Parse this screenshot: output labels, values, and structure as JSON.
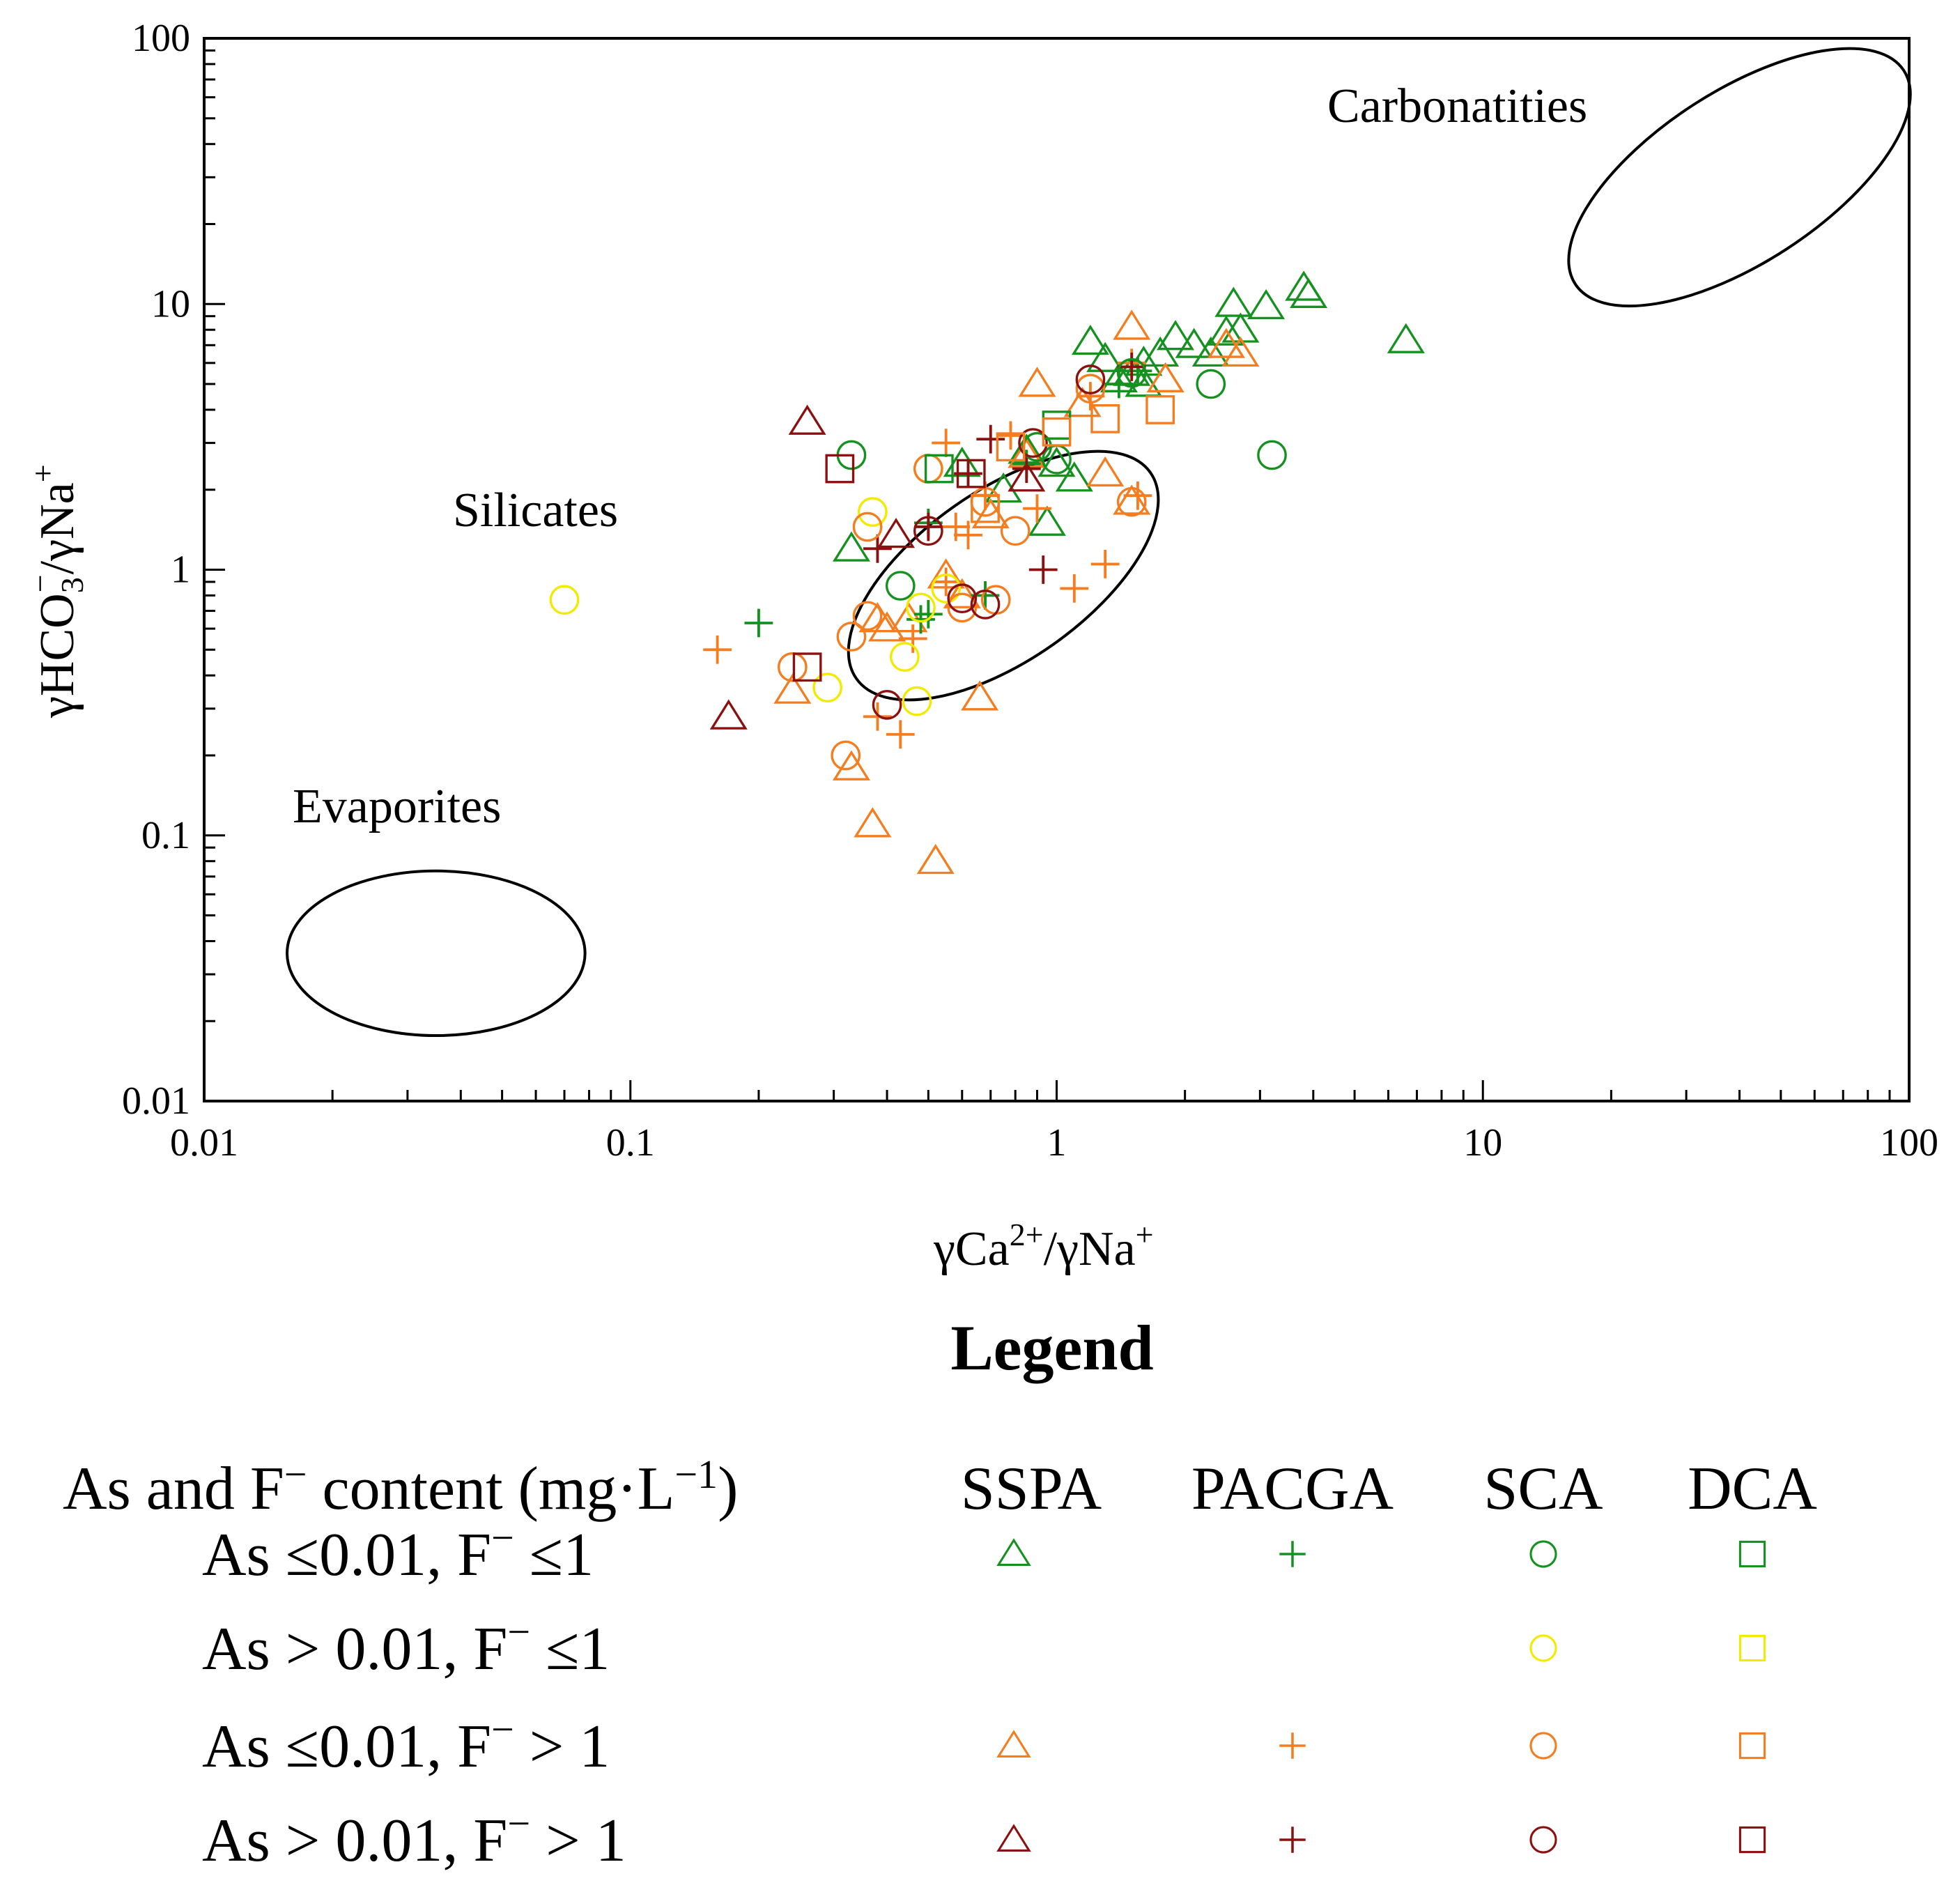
{
  "chart_data": {
    "type": "scatter",
    "title": "",
    "xscale": "log",
    "yscale": "log",
    "xlim": [
      0.01,
      100
    ],
    "ylim": [
      0.01,
      100
    ],
    "xticks": [
      {
        "value": 0.01,
        "label": "0.01"
      },
      {
        "value": 0.1,
        "label": "0.1"
      },
      {
        "value": 1,
        "label": "1"
      },
      {
        "value": 10,
        "label": "10"
      },
      {
        "value": 100,
        "label": "100"
      }
    ],
    "yticks": [
      {
        "value": 0.01,
        "label": "0.01"
      },
      {
        "value": 0.1,
        "label": "0.1"
      },
      {
        "value": 1,
        "label": "1"
      },
      {
        "value": 10,
        "label": "10"
      },
      {
        "value": 100,
        "label": "100"
      }
    ],
    "xlabel": {
      "prefix": "γCa",
      "sup1": "2+",
      "mid": "/γNa",
      "sup2": "+"
    },
    "ylabel": {
      "prefix": "γHCO",
      "sub": "3",
      "sup1": "−",
      "mid": "/γNa",
      "sup2": "+"
    },
    "regions": [
      {
        "name": "Carbonatities",
        "label": "Carbonatities",
        "center": [
          40,
          30
        ],
        "xspan": [
          20,
          120
        ],
        "yspan": [
          13,
          90
        ],
        "angle": -33,
        "label_at": [
          25,
          60
        ]
      },
      {
        "name": "Silicates",
        "label": "Silicates",
        "center": [
          0.75,
          0.95
        ],
        "xspan": [
          0.33,
          1.6
        ],
        "yspan": [
          0.28,
          1.9
        ],
        "angle": -35,
        "label_at": [
          0.11,
          1.65
        ]
      },
      {
        "name": "Evaporites",
        "label": "Evaporites",
        "center": [
          0.035,
          0.036
        ],
        "xspan": [
          0.015,
          0.075
        ],
        "yspan": [
          0.018,
          0.075
        ],
        "angle": 0,
        "label_at": [
          0.023,
          0.125
        ]
      }
    ],
    "colors": {
      "green": "#14911f",
      "yellow": "#f2ea00",
      "orange": "#f47d20",
      "darkred": "#8b1010"
    },
    "series": [
      {
        "name": "SSPA, As ≤0.01, F− ≤1",
        "region": "SSPA",
        "group": "As ≤0.01, F− ≤1",
        "marker": "triangle",
        "color": "#14911f",
        "points": [
          [
            1.2,
            7.2
          ],
          [
            1.3,
            6.2
          ],
          [
            1.4,
            5.2
          ],
          [
            1.5,
            5.5
          ],
          [
            1.6,
            5.0
          ],
          [
            1.75,
            6.5
          ],
          [
            1.9,
            7.5
          ],
          [
            2.1,
            7.0
          ],
          [
            2.3,
            6.5
          ],
          [
            2.5,
            7.8
          ],
          [
            2.6,
            10.0
          ],
          [
            2.7,
            8.0
          ],
          [
            3.1,
            9.8
          ],
          [
            3.8,
            11.5
          ],
          [
            3.9,
            10.8
          ],
          [
            6.6,
            7.3
          ],
          [
            0.33,
            1.2
          ],
          [
            0.95,
            1.5
          ],
          [
            1.0,
            2.5
          ],
          [
            0.6,
            2.5
          ],
          [
            0.75,
            2.0
          ],
          [
            0.85,
            2.8
          ],
          [
            1.1,
            2.2
          ],
          [
            1.6,
            6.0
          ]
        ]
      },
      {
        "name": "SSPA, As ≤0.01, F− >1",
        "region": "SSPA",
        "group": "As ≤0.01, F− > 1",
        "marker": "triangle",
        "color": "#f47d20",
        "points": [
          [
            0.52,
            0.08
          ],
          [
            0.37,
            0.11
          ],
          [
            0.33,
            0.18
          ],
          [
            0.24,
            0.35
          ],
          [
            0.66,
            0.33
          ],
          [
            0.45,
            0.65
          ],
          [
            0.55,
            0.95
          ],
          [
            0.9,
            5.0
          ],
          [
            1.15,
            4.2
          ],
          [
            1.5,
            8.2
          ],
          [
            1.3,
            2.3
          ],
          [
            1.5,
            1.8
          ],
          [
            2.5,
            7.0
          ],
          [
            2.7,
            6.5
          ],
          [
            1.8,
            5.2
          ],
          [
            0.4,
            0.6
          ],
          [
            0.38,
            0.65
          ],
          [
            0.6,
            0.8
          ],
          [
            0.7,
            1.6
          ],
          [
            0.85,
            2.7
          ]
        ]
      },
      {
        "name": "SSPA, As >0.01, F− >1",
        "region": "SSPA",
        "group": "As > 0.01, F− > 1",
        "marker": "triangle",
        "color": "#8b1010",
        "points": [
          [
            0.26,
            3.6
          ],
          [
            0.17,
            0.28
          ],
          [
            0.42,
            1.35
          ],
          [
            0.85,
            2.2
          ]
        ]
      },
      {
        "name": "PACGA, As ≤0.01, F− ≤1",
        "region": "PACGA",
        "group": "As ≤0.01, F− ≤1",
        "marker": "plus",
        "color": "#14911f",
        "points": [
          [
            0.2,
            0.63
          ],
          [
            0.48,
            0.65
          ],
          [
            0.5,
            0.68
          ],
          [
            0.68,
            0.8
          ],
          [
            0.5,
            1.5
          ],
          [
            1.4,
            5.0
          ],
          [
            1.55,
            5.6
          ],
          [
            0.85,
            2.5
          ]
        ]
      },
      {
        "name": "PACGA, As ≤0.01, F− >1",
        "region": "PACGA",
        "group": "As ≤0.01, F− > 1",
        "marker": "plus",
        "color": "#f47d20",
        "points": [
          [
            0.16,
            0.5
          ],
          [
            0.43,
            0.24
          ],
          [
            0.38,
            0.28
          ],
          [
            0.46,
            0.55
          ],
          [
            0.55,
            0.9
          ],
          [
            0.58,
            1.45
          ],
          [
            0.62,
            1.35
          ],
          [
            0.55,
            3.0
          ],
          [
            0.78,
            3.2
          ],
          [
            0.9,
            1.7
          ],
          [
            1.1,
            0.85
          ],
          [
            1.3,
            1.05
          ],
          [
            1.2,
            4.5
          ],
          [
            0.68,
            1.9
          ],
          [
            1.5,
            6.0
          ],
          [
            1.55,
            1.9
          ]
        ]
      },
      {
        "name": "PACGA, As >0.01, F− >1",
        "region": "PACGA",
        "group": "As > 0.01, F− > 1",
        "marker": "plus",
        "color": "#8b1010",
        "points": [
          [
            0.38,
            1.2
          ],
          [
            0.5,
            1.45
          ],
          [
            0.62,
            2.3
          ],
          [
            0.7,
            3.1
          ],
          [
            0.85,
            2.4
          ],
          [
            0.93,
            1.0
          ],
          [
            1.5,
            5.8
          ]
        ]
      },
      {
        "name": "SCA, As ≤0.01, F− ≤1",
        "region": "SCA",
        "group": "As ≤0.01, F− ≤1",
        "marker": "circle",
        "color": "#14911f",
        "points": [
          [
            0.33,
            2.7
          ],
          [
            0.43,
            0.87
          ],
          [
            0.9,
            2.9
          ],
          [
            1.0,
            2.6
          ],
          [
            1.5,
            5.5
          ],
          [
            2.3,
            5.0
          ],
          [
            3.2,
            2.7
          ]
        ]
      },
      {
        "name": "SCA, As >0.01, F− ≤1",
        "region": "SCA",
        "group": "As > 0.01, F− ≤1",
        "marker": "circle",
        "color": "#f2ea00",
        "points": [
          [
            0.07,
            0.77
          ],
          [
            0.29,
            0.36
          ],
          [
            0.37,
            1.65
          ],
          [
            0.44,
            0.47
          ],
          [
            0.47,
            0.32
          ],
          [
            0.48,
            0.72
          ],
          [
            0.5,
            2.4
          ],
          [
            0.55,
            0.85
          ]
        ]
      },
      {
        "name": "SCA, As ≤0.01, F− >1",
        "region": "SCA",
        "group": "As ≤0.01, F− > 1",
        "marker": "circle",
        "color": "#f47d20",
        "points": [
          [
            0.24,
            0.43
          ],
          [
            0.32,
            0.2
          ],
          [
            0.33,
            0.56
          ],
          [
            0.36,
            1.45
          ],
          [
            0.36,
            0.67
          ],
          [
            0.5,
            2.4
          ],
          [
            0.6,
            0.72
          ],
          [
            0.68,
            1.8
          ],
          [
            0.72,
            0.77
          ],
          [
            0.8,
            1.4
          ],
          [
            1.2,
            4.8
          ],
          [
            1.5,
            1.8
          ]
        ]
      },
      {
        "name": "SCA, As >0.01, F− >1",
        "region": "SCA",
        "group": "As > 0.01, F− > 1",
        "marker": "circle",
        "color": "#8b1010",
        "points": [
          [
            0.4,
            0.31
          ],
          [
            0.5,
            1.4
          ],
          [
            0.6,
            0.78
          ],
          [
            0.68,
            0.74
          ],
          [
            0.88,
            3.0
          ],
          [
            1.2,
            5.2
          ]
        ]
      },
      {
        "name": "DCA, As ≤0.01, F− ≤1",
        "region": "DCA",
        "group": "As ≤0.01, F− ≤1",
        "marker": "square",
        "color": "#14911f",
        "points": [
          [
            0.53,
            2.4
          ],
          [
            1.0,
            3.5
          ]
        ]
      },
      {
        "name": "DCA, As ≤0.01, F− >1",
        "region": "DCA",
        "group": "As ≤0.01, F− > 1",
        "marker": "square",
        "color": "#f47d20",
        "points": [
          [
            0.68,
            1.7
          ],
          [
            0.78,
            2.9
          ],
          [
            1.0,
            3.3
          ],
          [
            1.3,
            3.7
          ],
          [
            1.75,
            4.0
          ]
        ]
      },
      {
        "name": "DCA, As >0.01, F− >1",
        "region": "DCA",
        "group": "As > 0.01, F− > 1",
        "marker": "square",
        "color": "#8b1010",
        "points": [
          [
            0.26,
            0.43
          ],
          [
            0.31,
            2.4
          ],
          [
            0.63,
            2.3
          ]
        ]
      }
    ]
  },
  "legend": {
    "title": "Legend",
    "header_label": {
      "text": "As and F",
      "sup": "−",
      "mid": " content (mg·L",
      "sup2": "−1",
      "end": ")"
    },
    "columns": [
      {
        "key": "SSPA",
        "label": "SSPA",
        "marker": "triangle"
      },
      {
        "key": "PACGA",
        "label": "PACGA",
        "marker": "plus"
      },
      {
        "key": "SCA",
        "label": "SCA",
        "marker": "circle"
      },
      {
        "key": "DCA",
        "label": "DCA",
        "marker": "square"
      }
    ],
    "rows": [
      {
        "as": "As ≤0.01, F",
        "sup": "−",
        "rest": " ≤1",
        "color": "#14911f",
        "present": [
          "SSPA",
          "PACGA",
          "SCA",
          "DCA"
        ]
      },
      {
        "as": "As > 0.01, F",
        "sup": "−",
        "rest": " ≤1",
        "color": "#f2ea00",
        "present": [
          "SCA",
          "DCA"
        ]
      },
      {
        "as": "As ≤0.01, F",
        "sup": "−",
        "rest": " > 1",
        "color": "#f47d20",
        "present": [
          "SSPA",
          "PACGA",
          "SCA",
          "DCA"
        ]
      },
      {
        "as": "As > 0.01, F",
        "sup": "−",
        "rest": " > 1",
        "color": "#8b1010",
        "present": [
          "SSPA",
          "PACGA",
          "SCA",
          "DCA"
        ]
      }
    ]
  }
}
